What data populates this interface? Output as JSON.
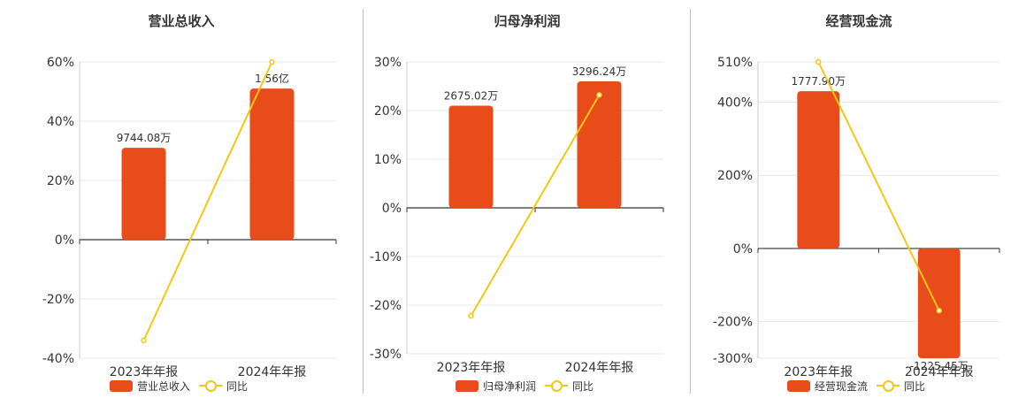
{
  "colors": {
    "bar": "#e84c1b",
    "line": "#f2c811",
    "axis": "#333333",
    "grid": "#e4e8f0"
  },
  "chart_data": [
    {
      "type": "bar",
      "title": "营业总收入",
      "categories": [
        "2023年年报",
        "2024年年报"
      ],
      "series": [
        {
          "name": "营业总收入",
          "type": "bar",
          "values": [
            0.31,
            0.51
          ],
          "labels": [
            "9744.08万",
            "1.56亿"
          ]
        },
        {
          "name": "同比",
          "type": "line",
          "values": [
            -0.34,
            0.6
          ]
        }
      ],
      "ylim": [
        -0.4,
        0.6
      ],
      "yticks": [
        0.6,
        0.4,
        0.2,
        0,
        -0.2,
        -0.4
      ],
      "ytick_labels": [
        "60%",
        "40%",
        "20%",
        "0%",
        "-20%",
        "-40%"
      ],
      "grid": true,
      "legend": "bottom-center"
    },
    {
      "type": "bar",
      "title": "归母净利润",
      "categories": [
        "2023年年报",
        "2024年年报"
      ],
      "series": [
        {
          "name": "归母净利润",
          "type": "bar",
          "values": [
            0.21,
            0.26
          ],
          "labels": [
            "2675.02万",
            "3296.24万"
          ]
        },
        {
          "name": "同比",
          "type": "line",
          "values": [
            -0.222,
            0.232
          ]
        }
      ],
      "ylim": [
        -0.3,
        0.3
      ],
      "yticks": [
        0.3,
        0.2,
        0.1,
        0,
        -0.1,
        -0.2,
        -0.3
      ],
      "ytick_labels": [
        "30%",
        "20%",
        "10%",
        "0%",
        "-10%",
        "-20%",
        "-30%"
      ],
      "grid": true,
      "legend": "bottom-center"
    },
    {
      "type": "bar",
      "title": "经营现金流",
      "categories": [
        "2023年年报",
        "2024年年报"
      ],
      "series": [
        {
          "name": "经营现金流",
          "type": "bar",
          "values": [
            4.3,
            -3.0
          ],
          "labels": [
            "1777.90万",
            "-1225.45万"
          ]
        },
        {
          "name": "同比",
          "type": "line",
          "values": [
            5.1,
            -1.7
          ]
        }
      ],
      "ylim": [
        -3.0,
        5.1
      ],
      "yticks": [
        5.1,
        4.0,
        2.0,
        0,
        -2.0,
        -3.0
      ],
      "ytick_labels": [
        "510%",
        "400%",
        "200%",
        "0%",
        "-200%",
        "-300%"
      ],
      "grid": true,
      "legend": "bottom-center"
    }
  ]
}
